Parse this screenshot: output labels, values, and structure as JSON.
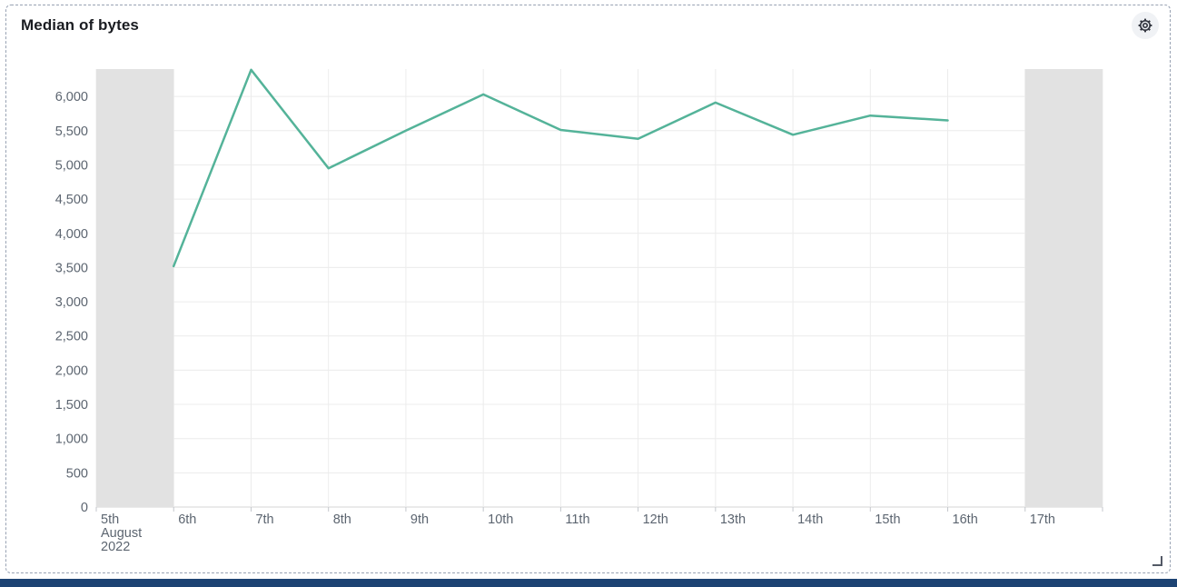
{
  "panel": {
    "title": "Median of bytes",
    "settings_icon": "gear-icon"
  },
  "chart_data": {
    "type": "line",
    "title": "Median of bytes",
    "xlabel": "",
    "ylabel": "",
    "legend": "none",
    "grid": true,
    "x_axis": {
      "domain_intervals": 13,
      "tick_labels": [
        "5th",
        "6th",
        "7th",
        "8th",
        "9th",
        "10th",
        "11th",
        "12th",
        "13th",
        "14th",
        "15th",
        "16th",
        "17th"
      ],
      "first_tick_extra_lines": [
        "August",
        "2022"
      ]
    },
    "y_axis": {
      "ticks": [
        0,
        500,
        1000,
        1500,
        2000,
        2500,
        3000,
        3500,
        4000,
        4500,
        5000,
        5500,
        6000
      ],
      "max": 6400
    },
    "series": [
      {
        "name": "Median of bytes",
        "color": "#54B399",
        "points": [
          {
            "x": "6th",
            "y": 3520
          },
          {
            "x": "7th",
            "y": 6390
          },
          {
            "x": "8th",
            "y": 4950
          },
          {
            "x": "9th",
            "y": 5500
          },
          {
            "x": "10th",
            "y": 6030
          },
          {
            "x": "11th",
            "y": 5510
          },
          {
            "x": "12th",
            "y": 5380
          },
          {
            "x": "13th",
            "y": 5910
          },
          {
            "x": "14th",
            "y": 5440
          },
          {
            "x": "15th",
            "y": 5720
          },
          {
            "x": "16th",
            "y": 5650
          }
        ]
      }
    ],
    "shaded_bands": [
      {
        "from_index": 0,
        "to_index": 1
      },
      {
        "from_index": 12,
        "to_index": 13
      }
    ],
    "colors": {
      "band": "#e2e2e2",
      "grid": "#ececec",
      "axis_line": "#d6d6d6",
      "tick": "#c4c7cc",
      "label": "#5c6570"
    }
  },
  "colors": {
    "panel_border": "#98a2b3",
    "bottom_bar": "#1d4373",
    "line": "#54B399"
  }
}
